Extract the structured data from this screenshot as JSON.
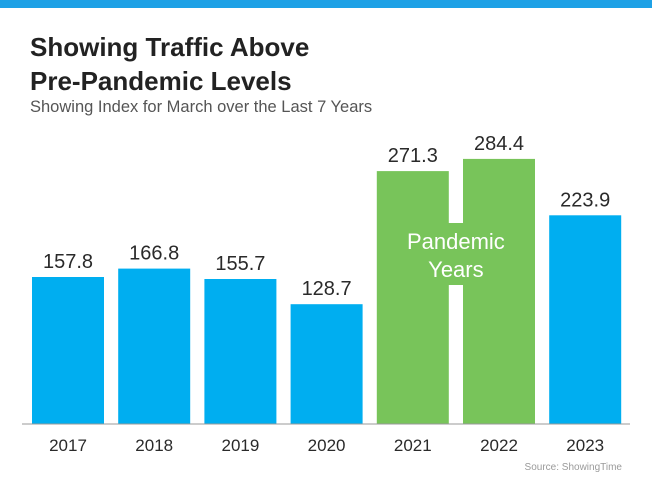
{
  "header": {
    "title_line1": "Showing Traffic Above",
    "title_line2": "Pre-Pandemic Levels",
    "subtitle": "Showing Index for March over the Last 7 Years"
  },
  "source": "Source: ShowingTime",
  "colors": {
    "accent_bar": "#1ea1e6",
    "normal_bar": "#00aef0",
    "pandemic_bar": "#78c45a",
    "axis": "#999999"
  },
  "chart_data": {
    "type": "bar",
    "title": "Showing Traffic Above Pre-Pandemic Levels",
    "subtitle": "Showing Index for March over the Last 7 Years",
    "categories": [
      "2017",
      "2018",
      "2019",
      "2020",
      "2021",
      "2022",
      "2023"
    ],
    "values": [
      157.8,
      166.8,
      155.7,
      128.7,
      271.3,
      284.4,
      223.9
    ],
    "value_labels": [
      "157.8",
      "166.8",
      "155.7",
      "128.7",
      "271.3",
      "284.4",
      "223.9"
    ],
    "highlight": {
      "categories": [
        "2021",
        "2022"
      ],
      "label_line1": "Pandemic",
      "label_line2": "Years"
    },
    "xlabel": "",
    "ylabel": "",
    "ylim": [
      0,
      300
    ],
    "grid": false,
    "legend": "none"
  }
}
